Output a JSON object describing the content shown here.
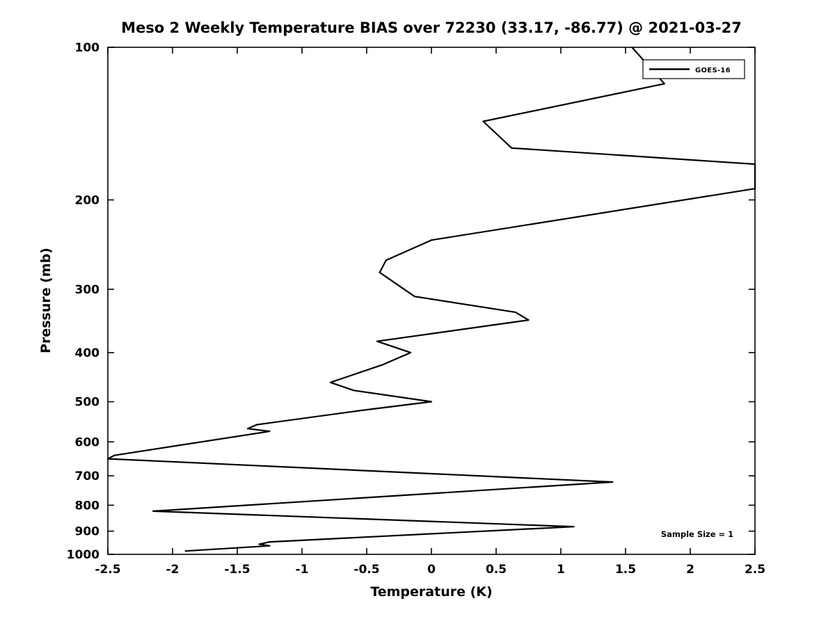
{
  "title": "Meso 2 Weekly Temperature BIAS over 72230 (33.17, -86.77) @ 2021-03-27",
  "xlabel": "Temperature (K)",
  "ylabel": "Pressure (mb)",
  "legend": {
    "label": "GOES-16"
  },
  "annotation": "Sample Size = 1",
  "axes": {
    "xlim": [
      -2.5,
      2.5
    ],
    "ylim": [
      100,
      1000
    ],
    "y_scale": "log",
    "y_inverted": true,
    "x_ticks": [
      -2.5,
      -2,
      -1.5,
      -1,
      -0.5,
      0,
      0.5,
      1,
      1.5,
      2,
      2.5
    ],
    "x_tick_labels": [
      "-2.5",
      "-2",
      "-1.5",
      "-1",
      "-0.5",
      "0",
      "0.5",
      "1",
      "1.5",
      "2",
      "2.5"
    ],
    "y_ticks": [
      100,
      200,
      300,
      400,
      500,
      600,
      700,
      800,
      900,
      1000
    ],
    "y_tick_labels": [
      "100",
      "200",
      "300",
      "400",
      "500",
      "600",
      "700",
      "800",
      "900",
      "1000"
    ]
  },
  "chart_data": {
    "type": "line",
    "title": "Meso 2 Weekly Temperature BIAS over 72230 (33.17, -86.77) @ 2021-03-27",
    "xlabel": "Temperature (K)",
    "ylabel": "Pressure (mb)",
    "xlim": [
      -2.5,
      2.5
    ],
    "ylim": [
      100,
      1000
    ],
    "y_scale": "log",
    "y_axis_display": "inverted (100 mb at top, 1000 mb at bottom)",
    "grid": false,
    "legend_position": "top-right",
    "annotations": [
      "Sample Size = 1"
    ],
    "series": [
      {
        "name": "GOES-16",
        "color": "#000000",
        "points": [
          [
            1.55,
            100
          ],
          [
            1.8,
            118
          ],
          [
            0.4,
            140
          ],
          [
            0.62,
            158
          ],
          [
            2.5,
            170
          ],
          [
            2.5,
            190
          ],
          [
            0.0,
            240
          ],
          [
            -0.35,
            263
          ],
          [
            -0.4,
            278
          ],
          [
            -0.13,
            310
          ],
          [
            0.65,
            333
          ],
          [
            0.75,
            345
          ],
          [
            -0.42,
            380
          ],
          [
            -0.16,
            400
          ],
          [
            -0.38,
            423
          ],
          [
            -0.78,
            458
          ],
          [
            -0.6,
            475
          ],
          [
            0.0,
            500
          ],
          [
            -0.54,
            520
          ],
          [
            -1.35,
            555
          ],
          [
            -1.42,
            565
          ],
          [
            -1.25,
            572
          ],
          [
            -2.45,
            638
          ],
          [
            -2.5,
            648
          ],
          [
            1.4,
            720
          ],
          [
            -2.15,
            822
          ],
          [
            1.1,
            882
          ],
          [
            -1.25,
            945
          ],
          [
            -1.33,
            955
          ],
          [
            -1.25,
            962
          ],
          [
            -1.9,
            985
          ]
        ]
      }
    ]
  }
}
